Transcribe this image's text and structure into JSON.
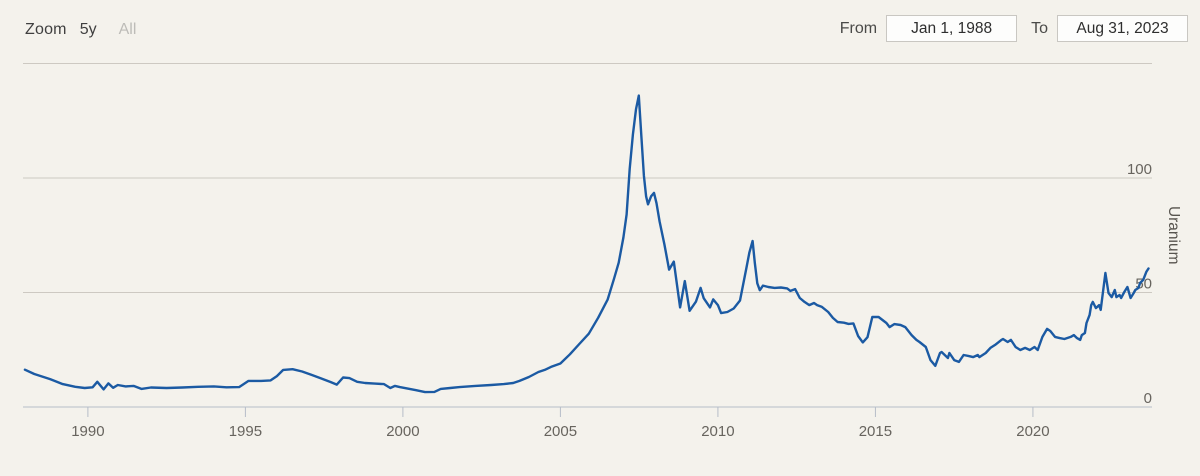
{
  "toolbar": {
    "zoom_label": "Zoom",
    "zoom_buttons": [
      {
        "label": "5y",
        "state": "enabled"
      },
      {
        "label": "All",
        "state": "muted"
      }
    ]
  },
  "range_selector": {
    "from_label": "From",
    "from_value": "Jan 1, 1988",
    "to_label": "To",
    "to_value": "Aug 31, 2023"
  },
  "chart_data": {
    "type": "line",
    "title": "",
    "ylabel": "Uranium",
    "xlabel": "",
    "legend": "none",
    "grid": true,
    "y_axis_side": "right",
    "xlim": [
      1987.94,
      2023.78
    ],
    "ylim": [
      0,
      150
    ],
    "x_ticks": [
      1990,
      1995,
      2000,
      2005,
      2010,
      2015,
      2020
    ],
    "y_gridlines": [
      0,
      50,
      100,
      150
    ],
    "y_labeled_ticks": [
      0,
      50,
      100
    ],
    "series": [
      {
        "name": "Uranium",
        "color": "#1b5aa3",
        "points": [
          [
            1988.0,
            16.3
          ],
          [
            1988.3,
            14.4
          ],
          [
            1988.8,
            12.2
          ],
          [
            1989.2,
            10.0
          ],
          [
            1989.6,
            8.8
          ],
          [
            1989.9,
            8.3
          ],
          [
            1990.15,
            8.6
          ],
          [
            1990.3,
            11.0
          ],
          [
            1990.5,
            7.7
          ],
          [
            1990.65,
            10.3
          ],
          [
            1990.8,
            8.4
          ],
          [
            1990.95,
            9.6
          ],
          [
            1991.2,
            9.0
          ],
          [
            1991.45,
            9.2
          ],
          [
            1991.7,
            7.9
          ],
          [
            1992.0,
            8.5
          ],
          [
            1992.5,
            8.3
          ],
          [
            1993.0,
            8.5
          ],
          [
            1993.5,
            8.8
          ],
          [
            1994.0,
            9.0
          ],
          [
            1994.4,
            8.6
          ],
          [
            1994.8,
            8.7
          ],
          [
            1995.1,
            11.4
          ],
          [
            1995.5,
            11.4
          ],
          [
            1995.8,
            11.6
          ],
          [
            1996.0,
            13.5
          ],
          [
            1996.2,
            16.2
          ],
          [
            1996.5,
            16.5
          ],
          [
            1996.8,
            15.5
          ],
          [
            1997.1,
            14.0
          ],
          [
            1997.4,
            12.5
          ],
          [
            1997.7,
            10.9
          ],
          [
            1997.9,
            9.8
          ],
          [
            1998.1,
            12.9
          ],
          [
            1998.3,
            12.6
          ],
          [
            1998.55,
            11.0
          ],
          [
            1998.8,
            10.5
          ],
          [
            1999.1,
            10.2
          ],
          [
            1999.4,
            10.0
          ],
          [
            1999.6,
            8.3
          ],
          [
            1999.75,
            9.2
          ],
          [
            1999.9,
            8.7
          ],
          [
            2000.4,
            7.4
          ],
          [
            2000.7,
            6.5
          ],
          [
            2001.0,
            6.6
          ],
          [
            2001.2,
            7.9
          ],
          [
            2001.5,
            8.3
          ],
          [
            2001.8,
            8.7
          ],
          [
            2002.3,
            9.2
          ],
          [
            2002.8,
            9.6
          ],
          [
            2003.2,
            10.0
          ],
          [
            2003.5,
            10.5
          ],
          [
            2003.7,
            11.4
          ],
          [
            2004.0,
            13.1
          ],
          [
            2004.3,
            15.3
          ],
          [
            2004.5,
            16.2
          ],
          [
            2004.7,
            17.5
          ],
          [
            2005.0,
            19.0
          ],
          [
            2005.3,
            23.0
          ],
          [
            2005.6,
            27.5
          ],
          [
            2005.9,
            32.0
          ],
          [
            2006.2,
            39.0
          ],
          [
            2006.5,
            47.0
          ],
          [
            2006.7,
            56.0
          ],
          [
            2006.85,
            63.0
          ],
          [
            2007.0,
            74.0
          ],
          [
            2007.1,
            84.0
          ],
          [
            2007.2,
            104.0
          ],
          [
            2007.3,
            119.0
          ],
          [
            2007.4,
            130.0
          ],
          [
            2007.49,
            136.0
          ],
          [
            2007.57,
            118.0
          ],
          [
            2007.65,
            101.0
          ],
          [
            2007.72,
            92.0
          ],
          [
            2007.78,
            88.5
          ],
          [
            2007.88,
            92.0
          ],
          [
            2007.97,
            93.5
          ],
          [
            2008.05,
            89.0
          ],
          [
            2008.15,
            81.0
          ],
          [
            2008.3,
            71.0
          ],
          [
            2008.45,
            60.0
          ],
          [
            2008.6,
            63.5
          ],
          [
            2008.8,
            43.5
          ],
          [
            2008.95,
            55.0
          ],
          [
            2009.1,
            42.0
          ],
          [
            2009.3,
            46.0
          ],
          [
            2009.45,
            52.0
          ],
          [
            2009.55,
            47.5
          ],
          [
            2009.75,
            43.5
          ],
          [
            2009.85,
            47.0
          ],
          [
            2010.0,
            44.5
          ],
          [
            2010.1,
            41.0
          ],
          [
            2010.3,
            41.5
          ],
          [
            2010.5,
            43.0
          ],
          [
            2010.7,
            46.5
          ],
          [
            2010.9,
            60.5
          ],
          [
            2011.0,
            67.5
          ],
          [
            2011.1,
            72.5
          ],
          [
            2011.17,
            63.0
          ],
          [
            2011.25,
            54.0
          ],
          [
            2011.33,
            51.0
          ],
          [
            2011.43,
            53.0
          ],
          [
            2011.6,
            52.4
          ],
          [
            2011.8,
            52.0
          ],
          [
            2012.0,
            52.2
          ],
          [
            2012.2,
            51.8
          ],
          [
            2012.3,
            50.7
          ],
          [
            2012.45,
            51.5
          ],
          [
            2012.6,
            47.6
          ],
          [
            2012.75,
            45.9
          ],
          [
            2012.9,
            44.5
          ],
          [
            2013.05,
            45.4
          ],
          [
            2013.15,
            44.5
          ],
          [
            2013.3,
            43.7
          ],
          [
            2013.5,
            41.5
          ],
          [
            2013.65,
            38.9
          ],
          [
            2013.8,
            37.1
          ],
          [
            2014.0,
            36.8
          ],
          [
            2014.15,
            36.3
          ],
          [
            2014.3,
            36.5
          ],
          [
            2014.45,
            31.0
          ],
          [
            2014.6,
            28.2
          ],
          [
            2014.75,
            30.5
          ],
          [
            2014.9,
            39.3
          ],
          [
            2015.1,
            39.3
          ],
          [
            2015.35,
            36.7
          ],
          [
            2015.45,
            34.9
          ],
          [
            2015.6,
            36.2
          ],
          [
            2015.8,
            35.8
          ],
          [
            2015.95,
            34.9
          ],
          [
            2016.15,
            31.4
          ],
          [
            2016.3,
            29.3
          ],
          [
            2016.4,
            28.4
          ],
          [
            2016.6,
            26.2
          ],
          [
            2016.75,
            20.5
          ],
          [
            2016.9,
            18.0
          ],
          [
            2017.05,
            23.6
          ],
          [
            2017.1,
            24.0
          ],
          [
            2017.3,
            21.4
          ],
          [
            2017.35,
            23.6
          ],
          [
            2017.5,
            20.5
          ],
          [
            2017.65,
            19.7
          ],
          [
            2017.8,
            22.7
          ],
          [
            2017.95,
            22.3
          ],
          [
            2018.1,
            21.8
          ],
          [
            2018.25,
            22.7
          ],
          [
            2018.3,
            21.8
          ],
          [
            2018.5,
            23.6
          ],
          [
            2018.65,
            25.8
          ],
          [
            2018.8,
            27.1
          ],
          [
            2019.0,
            29.3
          ],
          [
            2019.05,
            29.7
          ],
          [
            2019.2,
            28.4
          ],
          [
            2019.3,
            29.3
          ],
          [
            2019.45,
            26.2
          ],
          [
            2019.6,
            24.9
          ],
          [
            2019.75,
            25.8
          ],
          [
            2019.9,
            24.9
          ],
          [
            2020.05,
            26.2
          ],
          [
            2020.15,
            24.9
          ],
          [
            2020.3,
            30.6
          ],
          [
            2020.45,
            34.1
          ],
          [
            2020.55,
            33.2
          ],
          [
            2020.7,
            30.6
          ],
          [
            2020.85,
            30.1
          ],
          [
            2021.0,
            29.7
          ],
          [
            2021.2,
            30.6
          ],
          [
            2021.3,
            31.4
          ],
          [
            2021.4,
            30.1
          ],
          [
            2021.5,
            29.3
          ],
          [
            2021.55,
            31.4
          ],
          [
            2021.65,
            32.3
          ],
          [
            2021.7,
            36.7
          ],
          [
            2021.8,
            40.2
          ],
          [
            2021.85,
            44.5
          ],
          [
            2021.9,
            45.9
          ],
          [
            2022.0,
            43.2
          ],
          [
            2022.1,
            44.5
          ],
          [
            2022.15,
            42.4
          ],
          [
            2022.3,
            58.5
          ],
          [
            2022.4,
            49.8
          ],
          [
            2022.5,
            48.0
          ],
          [
            2022.6,
            51.1
          ],
          [
            2022.65,
            48.0
          ],
          [
            2022.75,
            48.9
          ],
          [
            2022.8,
            47.6
          ],
          [
            2022.9,
            50.2
          ],
          [
            2023.0,
            52.4
          ],
          [
            2023.1,
            47.6
          ],
          [
            2023.2,
            49.8
          ],
          [
            2023.25,
            51.1
          ],
          [
            2023.35,
            52.0
          ],
          [
            2023.4,
            54.1
          ],
          [
            2023.5,
            55.5
          ],
          [
            2023.6,
            59.0
          ],
          [
            2023.67,
            60.5
          ]
        ]
      }
    ]
  },
  "colors": {
    "background": "#f4f2ec",
    "line": "#1b5aa3",
    "gridline": "#cdc9c2",
    "axis": "#b6bdc8",
    "tick_label": "#67645e",
    "axis_title": "#57544e",
    "text_dark": "#3f3f3f",
    "text_muted": "#bdbcb8"
  }
}
